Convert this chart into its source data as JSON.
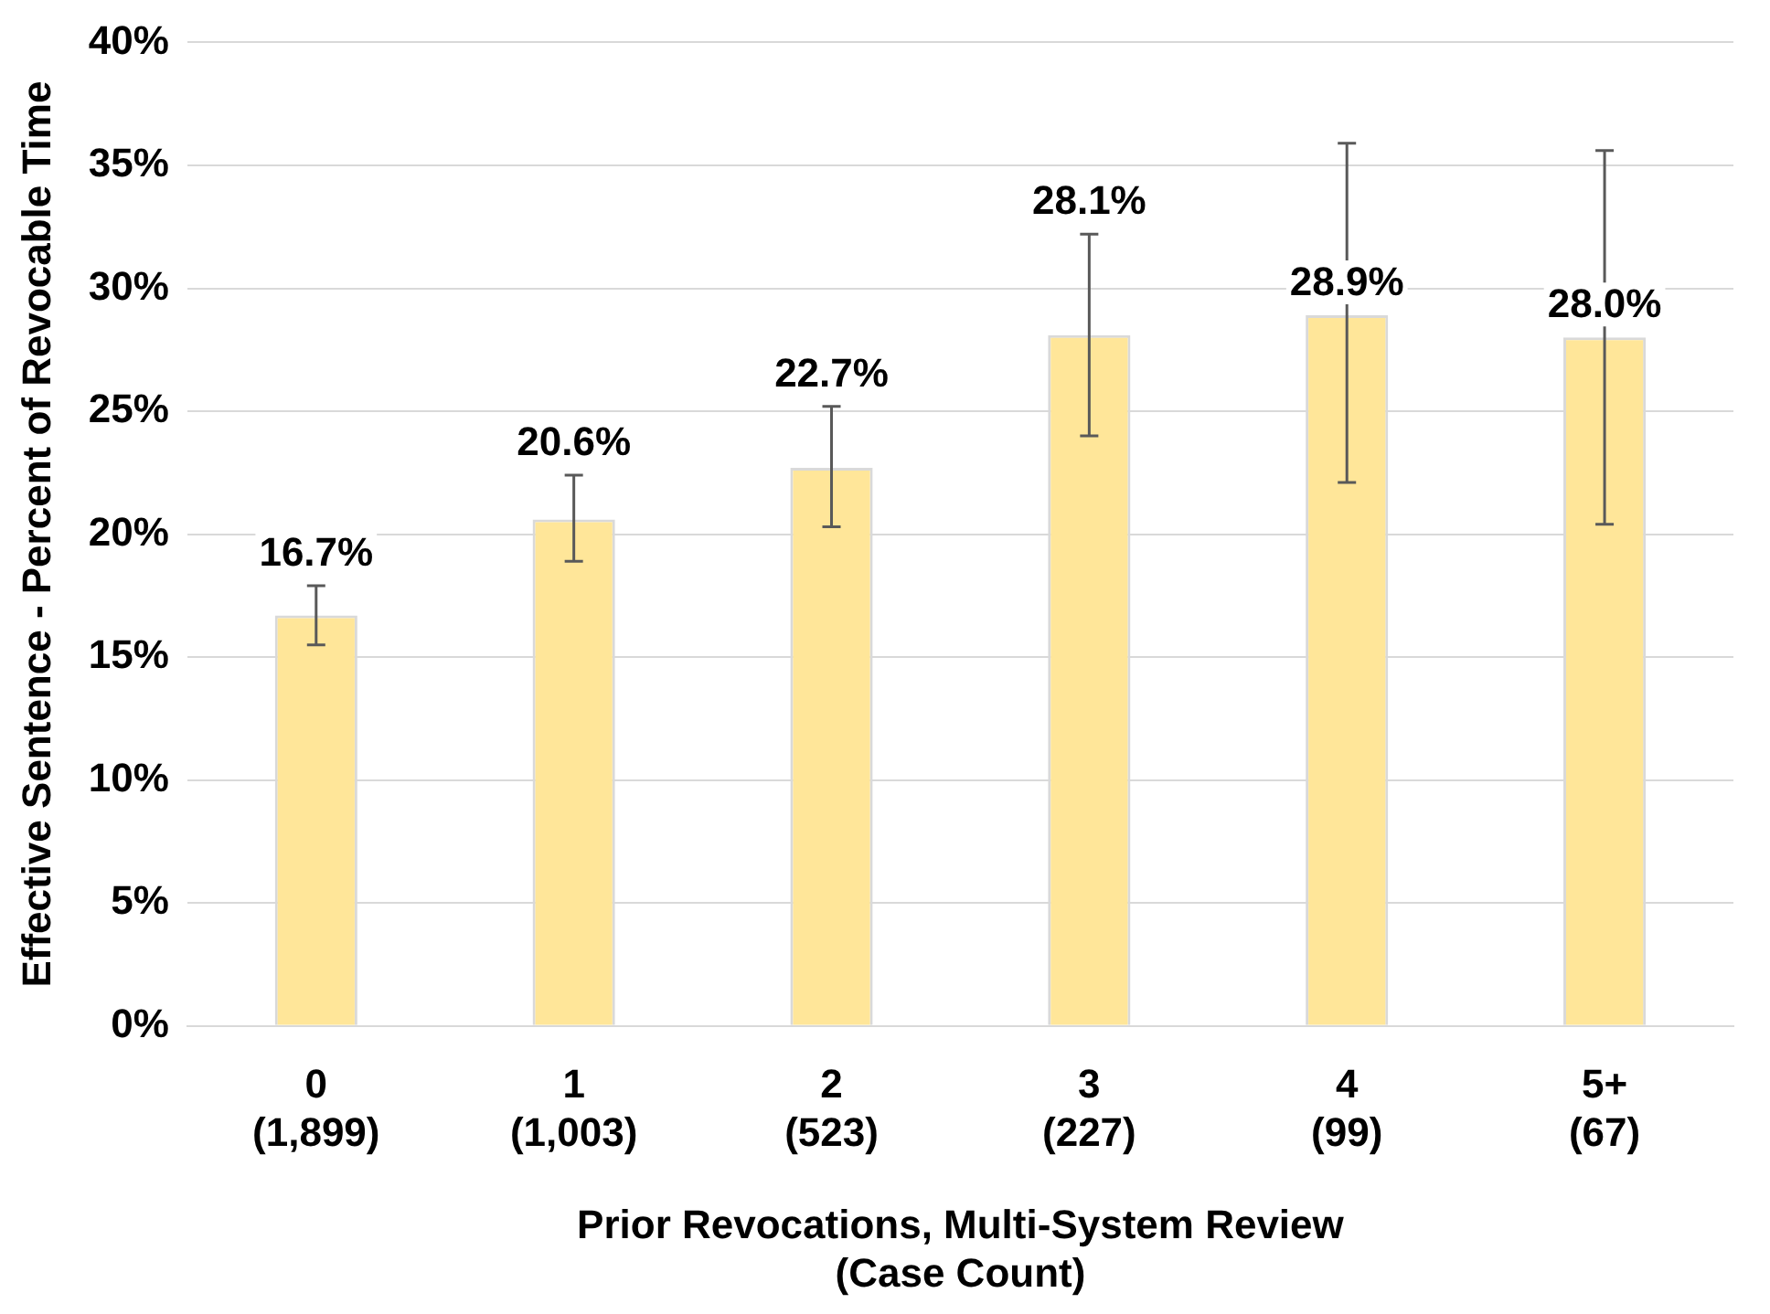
{
  "chart_data": {
    "type": "bar",
    "xlabel": "Prior Revocations, Multi-System Review\n(Case Count)",
    "ylabel": "Effective Sentence - Percent of Revocable Time",
    "categories": [
      "0\n(1,899)",
      "1\n(1,003)",
      "2\n(523)",
      "3\n(227)",
      "4\n(99)",
      "5+\n(67)"
    ],
    "values": [
      16.7,
      20.6,
      22.7,
      28.1,
      28.9,
      28.0
    ],
    "value_labels": [
      "16.7%",
      "20.6%",
      "22.7%",
      "28.1%",
      "28.9%",
      "28.0%"
    ],
    "errors": [
      [
        15.5,
        17.9
      ],
      [
        18.9,
        22.4
      ],
      [
        20.3,
        25.2
      ],
      [
        24.0,
        32.2
      ],
      [
        22.1,
        35.9
      ],
      [
        20.4,
        35.6
      ]
    ],
    "color": "#ffe699",
    "ylim": [
      0,
      40
    ],
    "yticks": [
      {
        "value": 0,
        "label": "0%"
      },
      {
        "value": 5,
        "label": "5%"
      },
      {
        "value": 10,
        "label": "10%"
      },
      {
        "value": 15,
        "label": "15%"
      },
      {
        "value": 20,
        "label": "20%"
      },
      {
        "value": 25,
        "label": "25%"
      },
      {
        "value": 30,
        "label": "30%"
      },
      {
        "value": 35,
        "label": "35%"
      },
      {
        "value": 40,
        "label": "40%"
      }
    ],
    "grid": "y",
    "legend": false
  }
}
